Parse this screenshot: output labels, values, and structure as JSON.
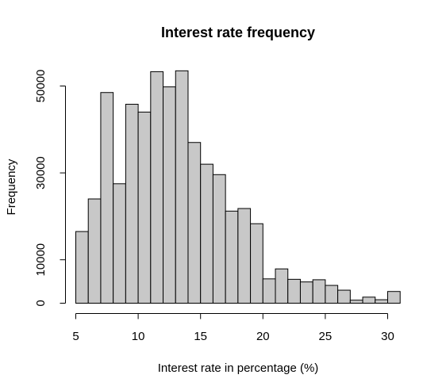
{
  "chart_data": {
    "type": "bar",
    "title": "Interest rate frequency",
    "xlabel": "Interest rate in percentage (%)",
    "ylabel": "Frequency",
    "bin_edges": [
      5,
      6,
      7,
      8,
      9,
      10,
      11,
      12,
      13,
      14,
      15,
      16,
      17,
      18,
      19,
      20,
      21,
      22,
      23,
      24,
      25,
      26,
      27,
      28,
      29,
      30,
      31
    ],
    "values": [
      16500,
      24000,
      48500,
      27500,
      45800,
      44000,
      53300,
      49800,
      53500,
      37000,
      32000,
      29600,
      21200,
      21800,
      18300,
      5600,
      7900,
      5500,
      4900,
      5400,
      4100,
      3000,
      700,
      1400,
      800,
      2700
    ],
    "xlim": [
      5,
      31
    ],
    "ylim": [
      0,
      53500
    ],
    "x_ticks": [
      5,
      10,
      15,
      20,
      25,
      30
    ],
    "y_ticks": [
      0,
      10000,
      30000,
      50000
    ],
    "x_tick_labels": [
      "5",
      "10",
      "15",
      "20",
      "25",
      "30"
    ],
    "y_tick_labels": [
      "0",
      "10000",
      "30000",
      "50000"
    ],
    "grid": false,
    "legend": "none",
    "colors": {
      "bar_fill": "#c8c8c8",
      "bar_stroke": "#000000"
    }
  }
}
